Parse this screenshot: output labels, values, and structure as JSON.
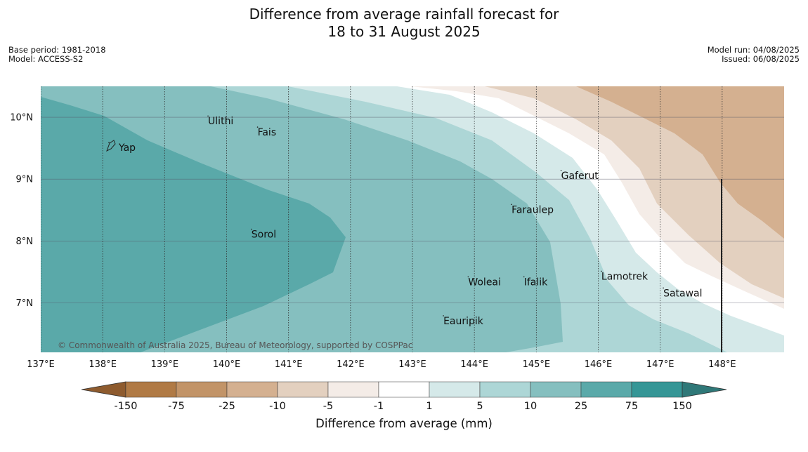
{
  "title": {
    "line1": "Difference from average rainfall forecast for",
    "line2": "18 to 31 August 2025"
  },
  "meta": {
    "base_period": "Base period: 1981-2018",
    "model": "Model: ACCESS-S2",
    "model_run": "Model run: 04/08/2025",
    "issued": "Issued: 06/08/2025"
  },
  "map": {
    "lon_range": [
      137,
      149
    ],
    "lat_range": [
      6.2,
      10.5
    ],
    "lon_ticks": [
      {
        "value": 137,
        "label": "137°E"
      },
      {
        "value": 138,
        "label": "138°E"
      },
      {
        "value": 139,
        "label": "139°E"
      },
      {
        "value": 140,
        "label": "140°E"
      },
      {
        "value": 141,
        "label": "141°E"
      },
      {
        "value": 142,
        "label": "142°E"
      },
      {
        "value": 143,
        "label": "143°E"
      },
      {
        "value": 144,
        "label": "144°E"
      },
      {
        "value": 145,
        "label": "145°E"
      },
      {
        "value": 146,
        "label": "146°E"
      },
      {
        "value": 147,
        "label": "147°E"
      },
      {
        "value": 148,
        "label": "148°E"
      }
    ],
    "lat_ticks": [
      {
        "value": 10,
        "label": "10°N"
      },
      {
        "value": 9,
        "label": "9°N"
      },
      {
        "value": 8,
        "label": "8°N"
      },
      {
        "value": 7,
        "label": "7°N"
      }
    ],
    "places": [
      {
        "name": "Yap",
        "lon": 138.1,
        "lat": 9.5
      },
      {
        "name": "Ulithi",
        "lon": 139.7,
        "lat": 9.93
      },
      {
        "name": "Fais",
        "lon": 140.5,
        "lat": 9.75
      },
      {
        "name": "Gaferut",
        "lon": 145.4,
        "lat": 9.05
      },
      {
        "name": "Faraulep",
        "lon": 144.6,
        "lat": 8.5
      },
      {
        "name": "Sorol",
        "lon": 140.4,
        "lat": 8.1
      },
      {
        "name": "Lamotrek",
        "lon": 146.05,
        "lat": 7.42
      },
      {
        "name": "Woleai",
        "lon": 143.9,
        "lat": 7.33
      },
      {
        "name": "Ifalik",
        "lon": 144.8,
        "lat": 7.33
      },
      {
        "name": "Satawal",
        "lon": 147.05,
        "lat": 7.15
      },
      {
        "name": "Eauripik",
        "lon": 143.5,
        "lat": 6.7
      }
    ],
    "copyright": "© Commonwealth of Australia 2025, Bureau of Meteorology, supported by COSPPac"
  },
  "colorbar": {
    "title": "Difference from average (mm)",
    "ticks": [
      "-150",
      "-75",
      "-25",
      "-10",
      "-5",
      "-1",
      "1",
      "5",
      "10",
      "25",
      "75",
      "150"
    ],
    "colors": [
      "#8e5b2e",
      "#b07a45",
      "#c29468",
      "#d4b090",
      "#e3d0bf",
      "#f4ece7",
      "#ffffff",
      "#d5e9e9",
      "#add6d6",
      "#85bfbf",
      "#5aa9a9",
      "#359696",
      "#2f7878"
    ]
  }
}
